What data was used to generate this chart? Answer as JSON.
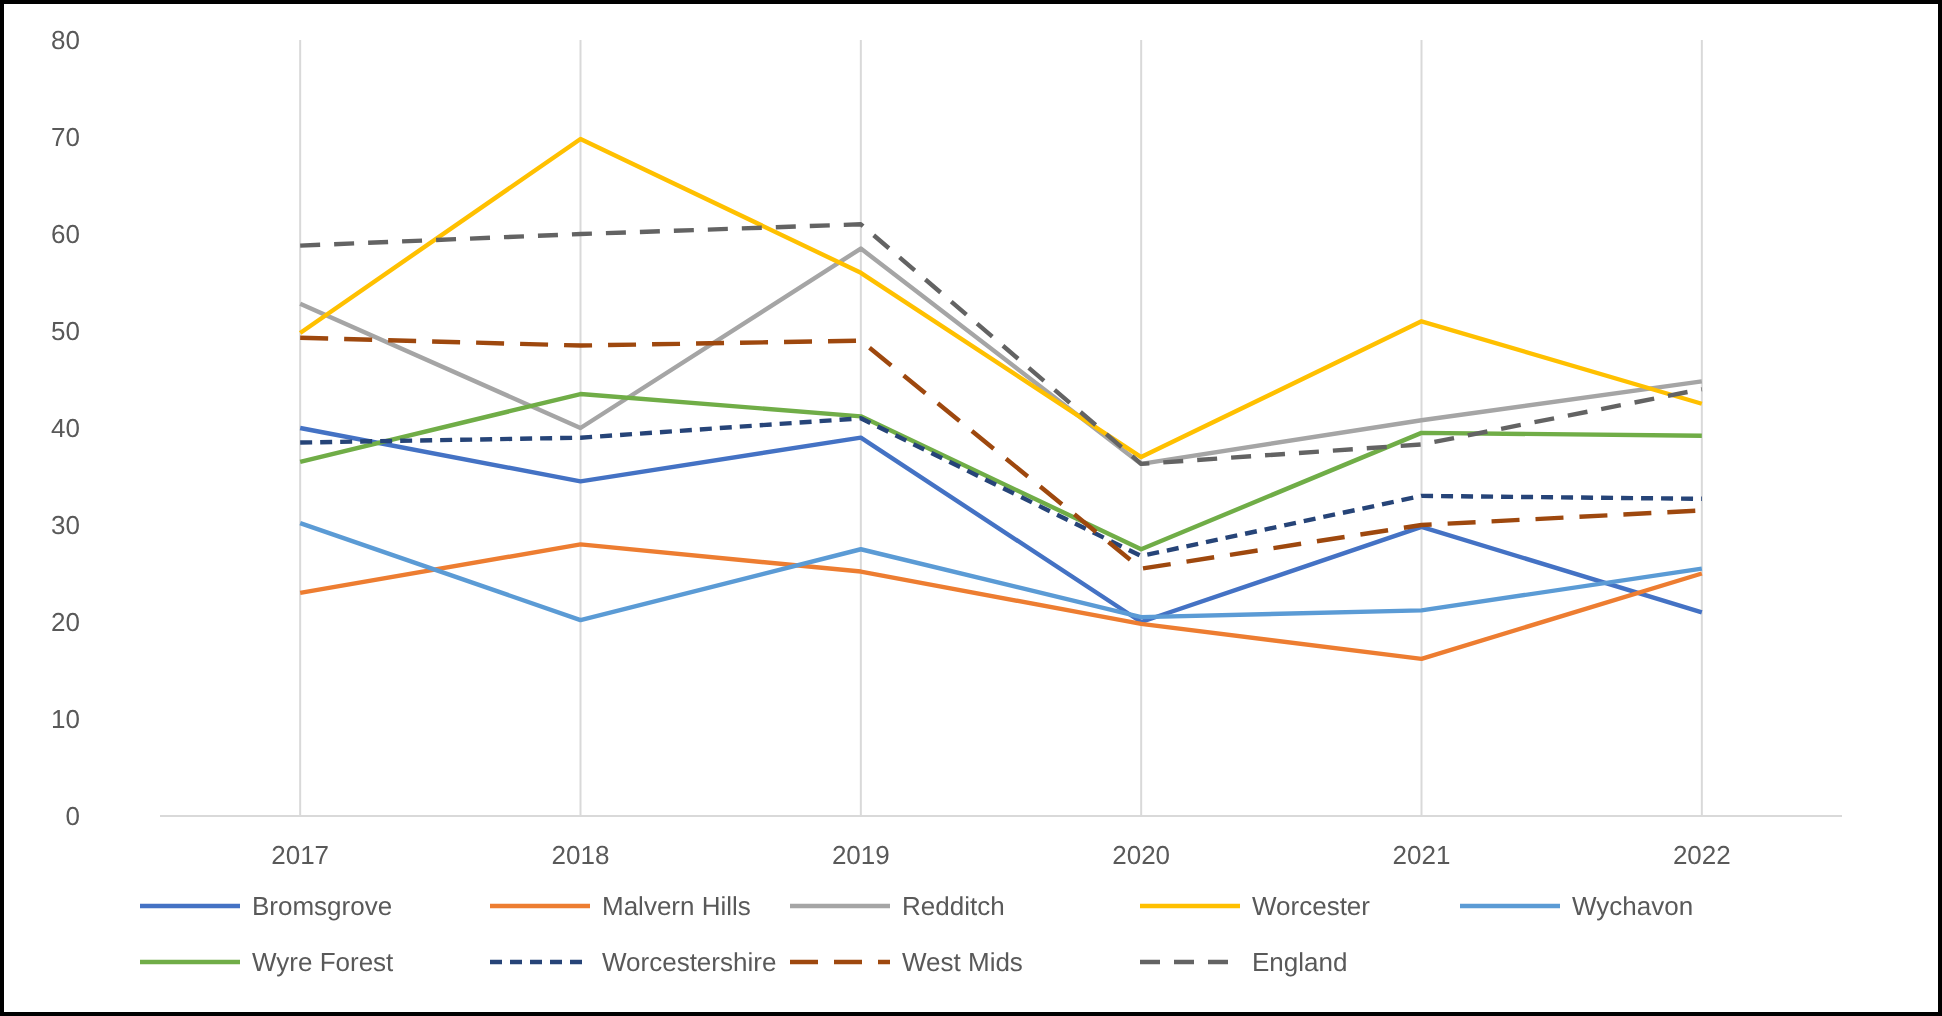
{
  "chart_data": {
    "type": "line",
    "categories": [
      "2017",
      "2018",
      "2019",
      "2020",
      "2021",
      "2022"
    ],
    "ylim": [
      0,
      80
    ],
    "yticks": [
      0,
      10,
      20,
      30,
      40,
      50,
      60,
      70,
      80
    ],
    "grid": "x",
    "legend": "bottom",
    "series": [
      {
        "name": "Bromsgrove",
        "color": "#4472c4",
        "values": [
          40,
          34.5,
          39,
          20,
          29.8,
          21
        ]
      },
      {
        "name": "Malvern Hills",
        "color": "#ed7d31",
        "values": [
          23,
          28,
          25.2,
          19.8,
          16.2,
          25
        ]
      },
      {
        "name": "Redditch",
        "color": "#a5a5a5",
        "values": [
          52.8,
          40,
          58.5,
          36.3,
          40.8,
          44.8
        ]
      },
      {
        "name": "Worcester",
        "color": "#ffc000",
        "values": [
          49.8,
          69.8,
          56,
          37,
          51,
          42.5
        ]
      },
      {
        "name": "Wychavon",
        "color": "#5b9bd5",
        "values": [
          30.2,
          20.2,
          27.5,
          20.5,
          21.2,
          25.5
        ]
      },
      {
        "name": "Wyre Forest",
        "color": "#70ad47",
        "values": [
          36.5,
          43.5,
          41.2,
          27.5,
          39.5,
          39.2
        ]
      },
      {
        "name": "Worcestershire",
        "color": "#264478",
        "line_style": "dashed",
        "values": [
          38.5,
          39,
          41,
          26.8,
          33,
          32.7
        ]
      },
      {
        "name": "West Mids",
        "color": "#9e480e",
        "line_style": "dashed",
        "values": [
          49.3,
          48.5,
          49,
          25.5,
          30,
          31.5
        ]
      },
      {
        "name": "England",
        "color": "#636363",
        "line_style": "dashed",
        "values": [
          58.8,
          60,
          61,
          36.3,
          38.3,
          44
        ]
      }
    ]
  }
}
